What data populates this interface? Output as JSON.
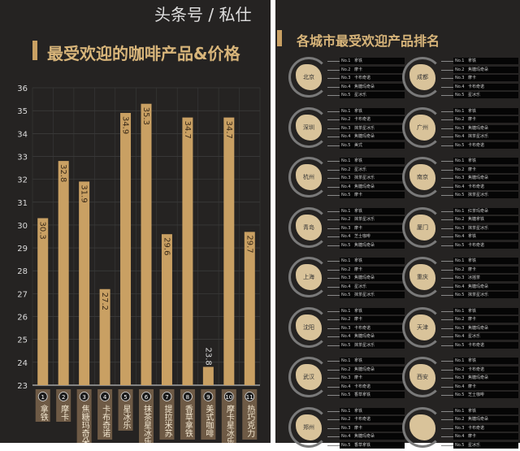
{
  "left": {
    "title": "最受欢迎的咖啡产品&价格"
  },
  "right": {
    "title": "各城市最受欢迎产品排名"
  },
  "watermark": "头条号 / 私仕",
  "colors": {
    "bar": "#c9a063",
    "background": "#252322",
    "label_box": "#6e5a45"
  },
  "chart_data": {
    "type": "bar",
    "title": "最受欢迎的咖啡产品&价格",
    "categories": [
      "拿铁",
      "摩卡",
      "焦糖玛奇朵",
      "卡布奇诺",
      "星冰乐",
      "抹茶星冰乐",
      "提拉米苏",
      "香草拿铁",
      "美式咖啡",
      "摩卡星冰乐",
      "热巧克力"
    ],
    "numbers": [
      "1",
      "2",
      "3",
      "4",
      "5",
      "6",
      "7",
      "8",
      "9",
      "10",
      "11"
    ],
    "values": [
      30.3,
      32.8,
      31.9,
      27.2,
      34.9,
      35.3,
      29.6,
      34.7,
      23.8,
      34.7,
      29.7
    ],
    "ylim": [
      23,
      36
    ],
    "yticks": [
      23,
      24,
      25,
      26,
      27,
      28,
      29,
      30,
      31,
      32,
      33,
      34,
      35,
      36
    ],
    "grid": true
  },
  "cities": [
    {
      "name": "北京",
      "items": [
        "拿铁",
        "摩卡",
        "卡布奇诺",
        "焦糖玛奇朵",
        "星冰乐"
      ]
    },
    {
      "name": "成都",
      "items": [
        "拿铁",
        "焦糖玛奇朵",
        "摩卡",
        "卡布奇诺",
        "星冰乐"
      ]
    },
    {
      "name": "深圳",
      "items": [
        "拿铁",
        "卡布奇诺",
        "抹茶星冰乐",
        "焦糖玛奇朵",
        "美式"
      ]
    },
    {
      "name": "广州",
      "items": [
        "拿铁",
        "摩卡",
        "焦糖玛奇朵",
        "抹茶星冰乐",
        "卡布奇诺"
      ]
    },
    {
      "name": "杭州",
      "items": [
        "拿铁",
        "星冰乐",
        "抹茶星冰乐",
        "焦糖玛奇朵",
        "摩卡"
      ]
    },
    {
      "name": "南京",
      "items": [
        "拿铁",
        "摩卡",
        "焦糖玛奇朵",
        "卡布奇诺",
        "抹茶星冰乐"
      ]
    },
    {
      "name": "青岛",
      "items": [
        "拿铁",
        "抹茶星冰乐",
        "摩卡",
        "芝士咖啡",
        "焦糖玛奇朵"
      ]
    },
    {
      "name": "厦门",
      "items": [
        "红茶玛奇朵",
        "焦糖拿铁",
        "抹茶星冰乐",
        "拿铁",
        "卡布奇诺"
      ]
    },
    {
      "name": "上海",
      "items": [
        "拿铁",
        "摩卡",
        "焦糖玛奇朵",
        "星冰乐",
        "抹茶星冰乐"
      ]
    },
    {
      "name": "重庆",
      "items": [
        "拿铁",
        "摩卡",
        "冰摇茶",
        "焦糖玛奇朵",
        "抹茶星冰乐"
      ]
    },
    {
      "name": "沈阳",
      "items": [
        "拿铁",
        "摩卡",
        "卡布奇诺",
        "焦糖玛奇朵",
        "抹茶星冰乐"
      ]
    },
    {
      "name": "天津",
      "items": [
        "拿铁",
        "摩卡",
        "焦糖玛奇朵",
        "星冰乐",
        "卡布奇诺"
      ]
    },
    {
      "name": "武汉",
      "items": [
        "拿铁",
        "焦糖玛奇朵",
        "摩卡",
        "卡布奇诺",
        "香草拿铁"
      ]
    },
    {
      "name": "西安",
      "items": [
        "拿铁",
        "卡布奇诺",
        "焦糖玛奇朵",
        "摩卡",
        "芝士咖啡"
      ]
    },
    {
      "name": "郑州",
      "items": [
        "拿铁",
        "卡布奇诺",
        "摩卡",
        "焦糖玛奇朵",
        "香草拿铁"
      ]
    },
    {
      "name": "",
      "items": [
        "拿铁",
        "焦糖玛奇朵",
        "卡布奇诺",
        "摩卡",
        "星冰乐"
      ]
    }
  ],
  "rank_labels": [
    "No.1",
    "No.2",
    "No.3",
    "No.4",
    "No.5"
  ]
}
